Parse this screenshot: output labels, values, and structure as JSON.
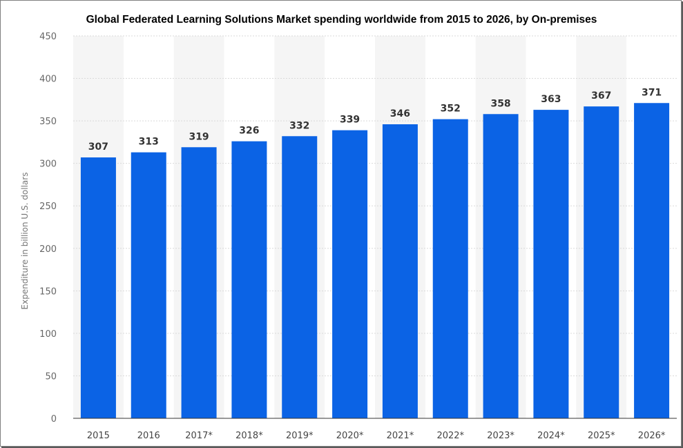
{
  "chart_data": {
    "type": "bar",
    "title": "Global Federated Learning Solutions Market spending worldwide from 2015 to 2026, by On-premises",
    "xlabel": "",
    "ylabel": "Expenditure in billion U.S. dollars",
    "categories": [
      "2015",
      "2016",
      "2017*",
      "2018*",
      "2019*",
      "2020*",
      "2021*",
      "2022*",
      "2023*",
      "2024*",
      "2025*",
      "2026*"
    ],
    "values": [
      307,
      313,
      319,
      326,
      332,
      339,
      346,
      352,
      358,
      363,
      367,
      371
    ],
    "yticks": [
      "0",
      "50",
      "100",
      "150",
      "200",
      "250",
      "300",
      "350",
      "400",
      "450"
    ],
    "ylim": [
      0,
      450
    ],
    "grid": true,
    "legend": "none",
    "bar_color": "#0b63e5",
    "band_color": "#f5f5f5"
  }
}
